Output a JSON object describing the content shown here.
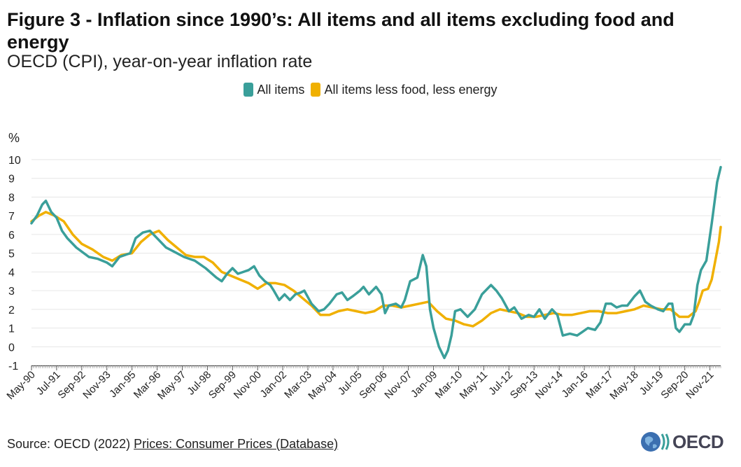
{
  "title": "Figure 3 - Inflation since 1990’s: All items and all items excluding food and energy",
  "subtitle": "OECD (CPI), year-on-year inflation rate",
  "source": {
    "prefix": "Source: OECD (2022) ",
    "link": "Prices: Consumer Prices (Database)"
  },
  "logo_text": "OECD",
  "colors": {
    "all_items": "#3a9f9a",
    "core": "#f0b000",
    "grid": "#e6e6e6",
    "axis": "#333333"
  },
  "chart_data": {
    "type": "line",
    "ylabel": "%",
    "ylim": [
      -1,
      10
    ],
    "yticks": [
      -1,
      0,
      1,
      2,
      3,
      4,
      5,
      6,
      7,
      8,
      9,
      10
    ],
    "x_start": "1990-05",
    "x_end": "2022-05",
    "tick_labels": [
      "May-90",
      "Jul-91",
      "Sep-92",
      "Nov-93",
      "Jan-95",
      "Mar-96",
      "May-97",
      "Jul-98",
      "Sep-99",
      "Nov-00",
      "Jan-02",
      "Mar-03",
      "May-04",
      "Jul-05",
      "Sep-06",
      "Nov-07",
      "Jan-09",
      "Mar-10",
      "May-11",
      "Jul-12",
      "Sep-13",
      "Nov-14",
      "Jan-16",
      "Mar-17",
      "May-18",
      "Jul-19",
      "Sep-20",
      "Nov-21"
    ],
    "legend": [
      "All items",
      "All items less food, less energy"
    ],
    "series": [
      {
        "name": "All items",
        "points": [
          [
            "1990-05",
            6.6
          ],
          [
            "1990-08",
            7.0
          ],
          [
            "1990-11",
            7.6
          ],
          [
            "1991-01",
            7.8
          ],
          [
            "1991-04",
            7.2
          ],
          [
            "1991-07",
            6.9
          ],
          [
            "1991-10",
            6.2
          ],
          [
            "1992-01",
            5.8
          ],
          [
            "1992-06",
            5.3
          ],
          [
            "1993-01",
            4.8
          ],
          [
            "1993-06",
            4.7
          ],
          [
            "1993-11",
            4.5
          ],
          [
            "1994-02",
            4.3
          ],
          [
            "1994-06",
            4.8
          ],
          [
            "1994-12",
            5.0
          ],
          [
            "1995-03",
            5.8
          ],
          [
            "1995-07",
            6.1
          ],
          [
            "1995-11",
            6.2
          ],
          [
            "1996-03",
            5.8
          ],
          [
            "1996-08",
            5.3
          ],
          [
            "1997-02",
            5.0
          ],
          [
            "1997-06",
            4.8
          ],
          [
            "1997-12",
            4.6
          ],
          [
            "1998-06",
            4.2
          ],
          [
            "1998-12",
            3.7
          ],
          [
            "1999-03",
            3.5
          ],
          [
            "1999-06",
            3.9
          ],
          [
            "1999-09",
            4.2
          ],
          [
            "1999-12",
            3.9
          ],
          [
            "2000-03",
            4.0
          ],
          [
            "2000-06",
            4.1
          ],
          [
            "2000-09",
            4.3
          ],
          [
            "2000-12",
            3.8
          ],
          [
            "2001-03",
            3.5
          ],
          [
            "2001-06",
            3.3
          ],
          [
            "2001-08",
            3.0
          ],
          [
            "2001-11",
            2.5
          ],
          [
            "2002-02",
            2.8
          ],
          [
            "2002-05",
            2.5
          ],
          [
            "2002-08",
            2.8
          ],
          [
            "2002-11",
            2.9
          ],
          [
            "2003-01",
            3.0
          ],
          [
            "2003-05",
            2.3
          ],
          [
            "2003-09",
            1.9
          ],
          [
            "2003-12",
            2.0
          ],
          [
            "2004-03",
            2.3
          ],
          [
            "2004-07",
            2.8
          ],
          [
            "2004-10",
            2.9
          ],
          [
            "2005-01",
            2.5
          ],
          [
            "2005-04",
            2.7
          ],
          [
            "2005-08",
            3.0
          ],
          [
            "2005-10",
            3.2
          ],
          [
            "2006-01",
            2.8
          ],
          [
            "2006-05",
            3.2
          ],
          [
            "2006-08",
            2.8
          ],
          [
            "2006-10",
            1.8
          ],
          [
            "2006-12",
            2.2
          ],
          [
            "2007-04",
            2.3
          ],
          [
            "2007-07",
            2.1
          ],
          [
            "2007-09",
            2.5
          ],
          [
            "2007-12",
            3.5
          ],
          [
            "2008-02",
            3.6
          ],
          [
            "2008-04",
            3.7
          ],
          [
            "2008-06",
            4.5
          ],
          [
            "2008-07",
            4.9
          ],
          [
            "2008-09",
            4.3
          ],
          [
            "2008-11",
            2.0
          ],
          [
            "2009-01",
            1.0
          ],
          [
            "2009-04",
            0.0
          ],
          [
            "2009-07",
            -0.6
          ],
          [
            "2009-09",
            -0.2
          ],
          [
            "2009-11",
            0.6
          ],
          [
            "2010-01",
            1.9
          ],
          [
            "2010-04",
            2.0
          ],
          [
            "2010-08",
            1.6
          ],
          [
            "2010-12",
            2.0
          ],
          [
            "2011-04",
            2.8
          ],
          [
            "2011-09",
            3.3
          ],
          [
            "2011-12",
            3.0
          ],
          [
            "2012-03",
            2.6
          ],
          [
            "2012-07",
            1.9
          ],
          [
            "2012-10",
            2.1
          ],
          [
            "2013-02",
            1.5
          ],
          [
            "2013-06",
            1.7
          ],
          [
            "2013-09",
            1.6
          ],
          [
            "2013-12",
            2.0
          ],
          [
            "2014-03",
            1.5
          ],
          [
            "2014-07",
            2.0
          ],
          [
            "2014-10",
            1.7
          ],
          [
            "2015-01",
            0.6
          ],
          [
            "2015-05",
            0.7
          ],
          [
            "2015-09",
            0.6
          ],
          [
            "2015-12",
            0.8
          ],
          [
            "2016-03",
            1.0
          ],
          [
            "2016-07",
            0.9
          ],
          [
            "2016-10",
            1.3
          ],
          [
            "2017-01",
            2.3
          ],
          [
            "2017-04",
            2.3
          ],
          [
            "2017-07",
            2.1
          ],
          [
            "2017-10",
            2.2
          ],
          [
            "2018-01",
            2.2
          ],
          [
            "2018-05",
            2.7
          ],
          [
            "2018-08",
            3.0
          ],
          [
            "2018-11",
            2.4
          ],
          [
            "2019-02",
            2.2
          ],
          [
            "2019-06",
            2.0
          ],
          [
            "2019-09",
            1.9
          ],
          [
            "2019-12",
            2.3
          ],
          [
            "2020-02",
            2.3
          ],
          [
            "2020-04",
            1.0
          ],
          [
            "2020-06",
            0.8
          ],
          [
            "2020-09",
            1.2
          ],
          [
            "2020-12",
            1.2
          ],
          [
            "2021-02",
            1.7
          ],
          [
            "2021-04",
            3.3
          ],
          [
            "2021-06",
            4.1
          ],
          [
            "2021-09",
            4.6
          ],
          [
            "2021-12",
            6.6
          ],
          [
            "2022-03",
            8.8
          ],
          [
            "2022-05",
            9.6
          ]
        ]
      },
      {
        "name": "All items less food, less energy",
        "points": [
          [
            "1990-05",
            6.7
          ],
          [
            "1990-09",
            7.0
          ],
          [
            "1991-01",
            7.2
          ],
          [
            "1991-06",
            7.0
          ],
          [
            "1991-11",
            6.7
          ],
          [
            "1992-04",
            6.0
          ],
          [
            "1992-09",
            5.5
          ],
          [
            "1993-03",
            5.2
          ],
          [
            "1993-09",
            4.8
          ],
          [
            "1994-02",
            4.6
          ],
          [
            "1994-07",
            4.9
          ],
          [
            "1995-01",
            5.0
          ],
          [
            "1995-06",
            5.6
          ],
          [
            "1995-11",
            6.0
          ],
          [
            "1996-04",
            6.2
          ],
          [
            "1996-09",
            5.7
          ],
          [
            "1997-02",
            5.3
          ],
          [
            "1997-07",
            4.9
          ],
          [
            "1997-12",
            4.8
          ],
          [
            "1998-05",
            4.8
          ],
          [
            "1998-10",
            4.5
          ],
          [
            "1999-03",
            4.0
          ],
          [
            "1999-08",
            3.8
          ],
          [
            "2000-01",
            3.6
          ],
          [
            "2000-06",
            3.4
          ],
          [
            "2000-11",
            3.1
          ],
          [
            "2001-04",
            3.4
          ],
          [
            "2001-09",
            3.4
          ],
          [
            "2002-02",
            3.3
          ],
          [
            "2002-07",
            3.0
          ],
          [
            "2002-12",
            2.6
          ],
          [
            "2003-05",
            2.2
          ],
          [
            "2003-10",
            1.7
          ],
          [
            "2004-03",
            1.7
          ],
          [
            "2004-08",
            1.9
          ],
          [
            "2005-01",
            2.0
          ],
          [
            "2005-06",
            1.9
          ],
          [
            "2005-11",
            1.8
          ],
          [
            "2006-04",
            1.9
          ],
          [
            "2006-09",
            2.2
          ],
          [
            "2007-02",
            2.2
          ],
          [
            "2007-07",
            2.1
          ],
          [
            "2007-12",
            2.2
          ],
          [
            "2008-05",
            2.3
          ],
          [
            "2008-10",
            2.4
          ],
          [
            "2009-03",
            1.9
          ],
          [
            "2009-08",
            1.5
          ],
          [
            "2010-01",
            1.4
          ],
          [
            "2010-06",
            1.2
          ],
          [
            "2010-11",
            1.1
          ],
          [
            "2011-04",
            1.4
          ],
          [
            "2011-09",
            1.8
          ],
          [
            "2012-02",
            2.0
          ],
          [
            "2012-07",
            1.9
          ],
          [
            "2012-12",
            1.8
          ],
          [
            "2013-05",
            1.6
          ],
          [
            "2013-10",
            1.6
          ],
          [
            "2014-03",
            1.7
          ],
          [
            "2014-08",
            1.8
          ],
          [
            "2015-01",
            1.7
          ],
          [
            "2015-06",
            1.7
          ],
          [
            "2015-11",
            1.8
          ],
          [
            "2016-04",
            1.9
          ],
          [
            "2016-09",
            1.9
          ],
          [
            "2017-02",
            1.8
          ],
          [
            "2017-07",
            1.8
          ],
          [
            "2017-12",
            1.9
          ],
          [
            "2018-05",
            2.0
          ],
          [
            "2018-10",
            2.2
          ],
          [
            "2019-03",
            2.1
          ],
          [
            "2019-08",
            2.0
          ],
          [
            "2020-01",
            2.0
          ],
          [
            "2020-06",
            1.6
          ],
          [
            "2020-11",
            1.6
          ],
          [
            "2021-03",
            1.9
          ],
          [
            "2021-05",
            2.4
          ],
          [
            "2021-07",
            3.0
          ],
          [
            "2021-10",
            3.1
          ],
          [
            "2021-12",
            3.6
          ],
          [
            "2022-02",
            4.6
          ],
          [
            "2022-04",
            5.6
          ],
          [
            "2022-05",
            6.4
          ]
        ]
      }
    ]
  }
}
